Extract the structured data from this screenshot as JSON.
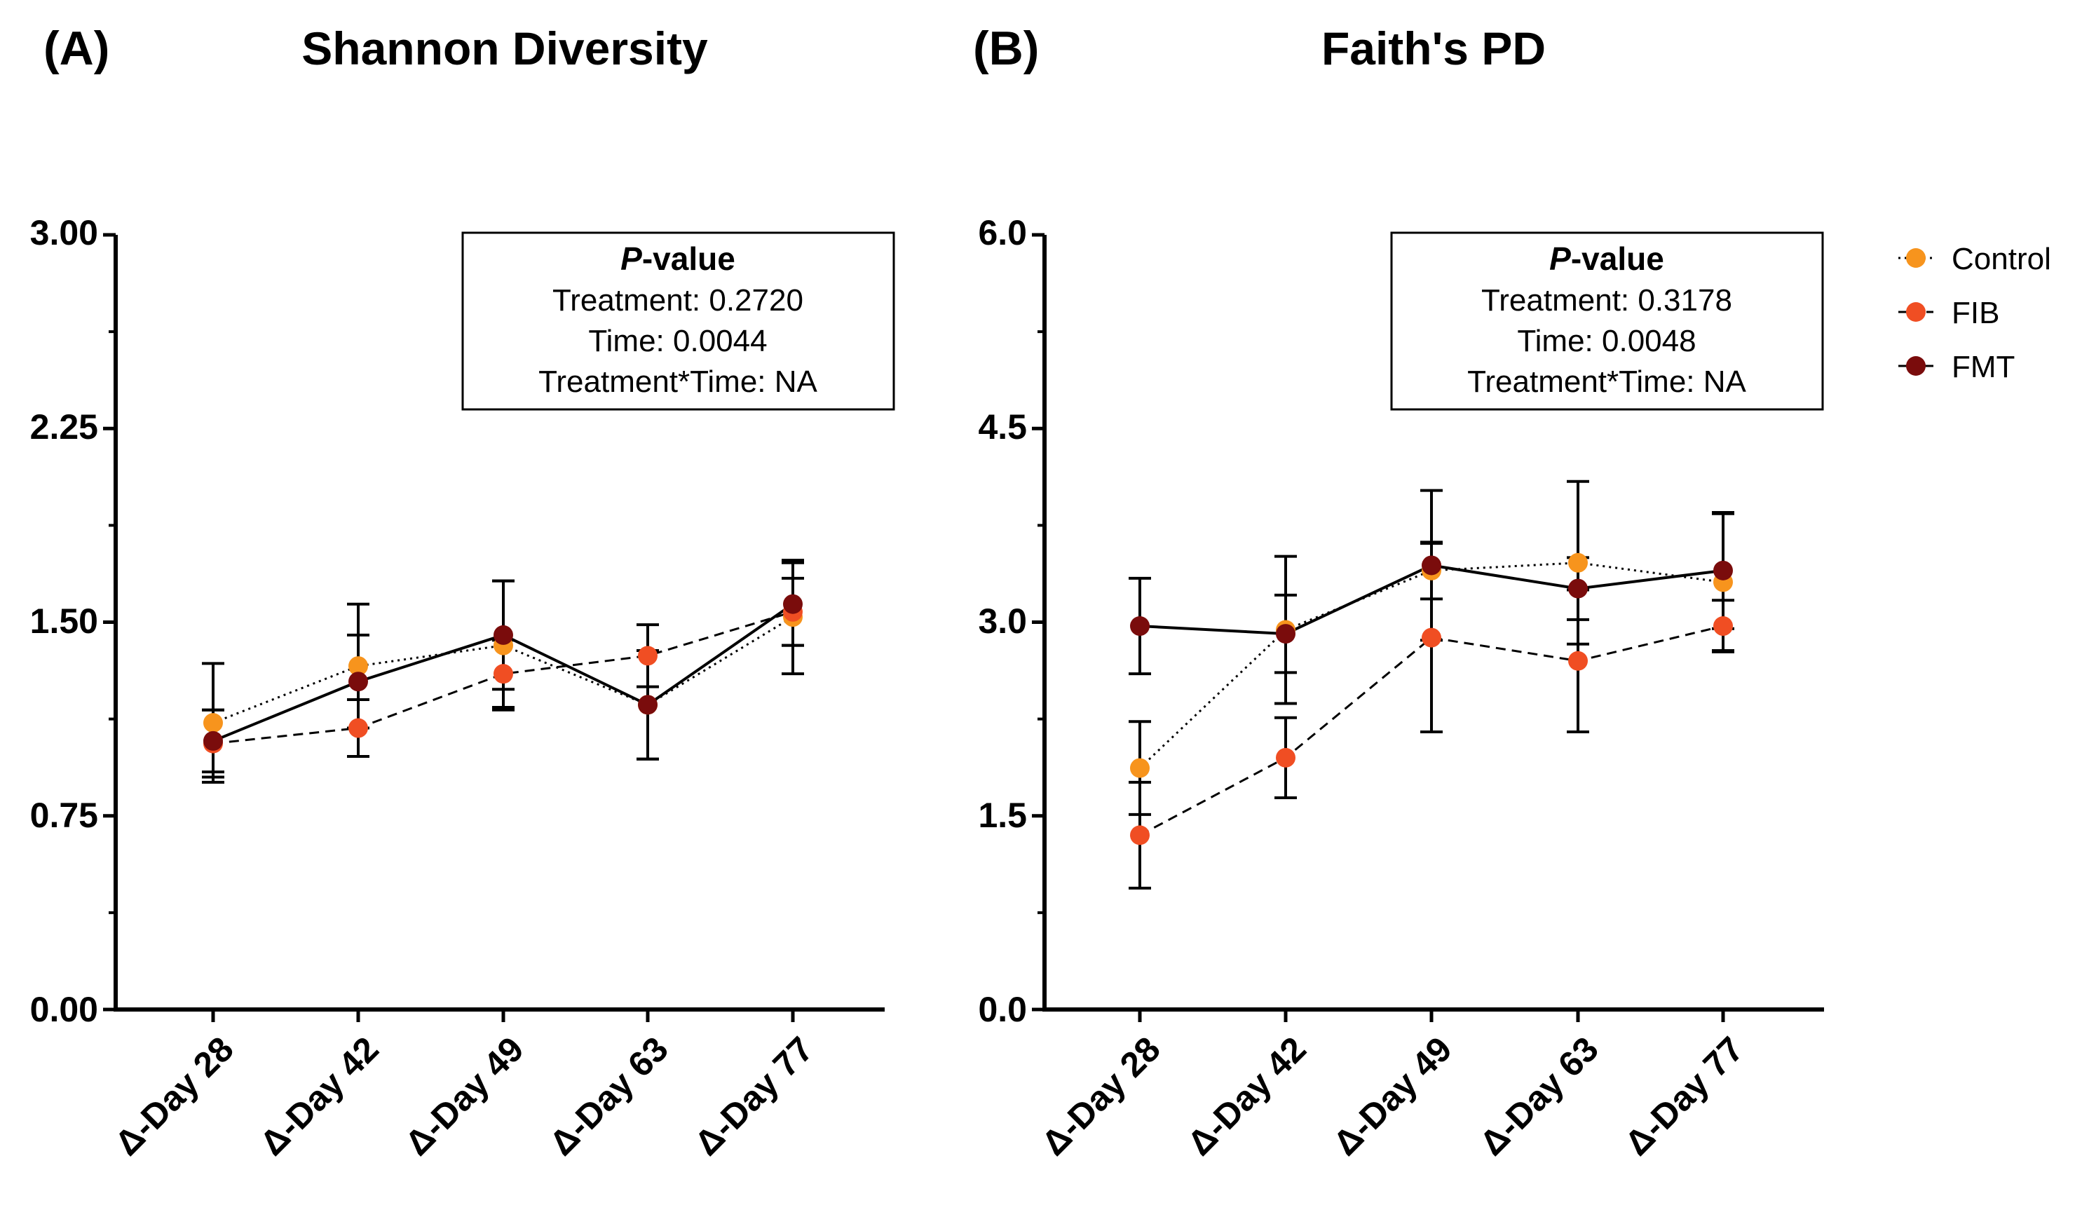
{
  "legend": {
    "items": [
      {
        "name": "Control",
        "color": "#F7941D",
        "line": "dotted"
      },
      {
        "name": "FIB",
        "color": "#F04E23",
        "line": "dashed"
      },
      {
        "name": "FMT",
        "color": "#7A0C0C",
        "line": "solid"
      }
    ]
  },
  "chart_data": [
    {
      "type": "line",
      "panel": "(A)",
      "title": "Shannon Diversity",
      "categories": [
        "Δ-Day 28",
        "Δ-Day 42",
        "Δ-Day 49",
        "Δ-Day 63",
        "Δ-Day 77"
      ],
      "ylim": [
        0,
        3
      ],
      "yticks": [
        "0.00",
        "0.75",
        "1.50",
        "2.25",
        "3.00"
      ],
      "ytick_values": [
        0,
        0.75,
        1.5,
        2.25,
        3.0
      ],
      "stats": {
        "title_italic": "P",
        "title_rest": "-value",
        "lines": [
          "Treatment: 0.2720",
          "Time: 0.0044",
          "Treatment*Time: NA"
        ]
      },
      "series": [
        {
          "name": "Control",
          "values": [
            1.11,
            1.33,
            1.41,
            1.18,
            1.52
          ],
          "err": [
            0.23,
            0.24,
            0.25,
            0.21,
            0.22
          ]
        },
        {
          "name": "FIB",
          "values": [
            1.03,
            1.09,
            1.3,
            1.37,
            1.54
          ],
          "err": [
            0.13,
            0.11,
            0.13,
            0.12,
            0.13
          ]
        },
        {
          "name": "FMT",
          "values": [
            1.04,
            1.27,
            1.45,
            1.18,
            1.57
          ],
          "err": [
            0.12,
            0.18,
            0.21,
            0.21,
            0.16
          ]
        }
      ]
    },
    {
      "type": "line",
      "panel": "(B)",
      "title": "Faith's PD",
      "categories": [
        "Δ-Day 28",
        "Δ-Day 42",
        "Δ-Day 49",
        "Δ-Day 63",
        "Δ-Day 77"
      ],
      "ylim": [
        0,
        6
      ],
      "yticks": [
        "0.0",
        "1.5",
        "3.0",
        "4.5",
        "6.0"
      ],
      "ytick_values": [
        0,
        1.5,
        3.0,
        4.5,
        6.0
      ],
      "stats": {
        "title_italic": "P",
        "title_rest": "-value",
        "lines": [
          "Treatment: 0.3178",
          "Time: 0.0048",
          "Treatment*Time: NA"
        ]
      },
      "series": [
        {
          "name": "Control",
          "values": [
            1.87,
            2.94,
            3.4,
            3.46,
            3.31
          ],
          "err": [
            0.36,
            0.57,
            0.22,
            0.63,
            0.53
          ]
        },
        {
          "name": "FIB",
          "values": [
            1.35,
            1.95,
            2.88,
            2.7,
            2.97
          ],
          "err": [
            0.41,
            0.31,
            0.73,
            0.55,
            0.2
          ]
        },
        {
          "name": "FMT",
          "values": [
            2.97,
            2.91,
            3.44,
            3.26,
            3.4
          ],
          "err": [
            0.37,
            0.3,
            0.58,
            0.24,
            0.45
          ]
        }
      ]
    }
  ]
}
